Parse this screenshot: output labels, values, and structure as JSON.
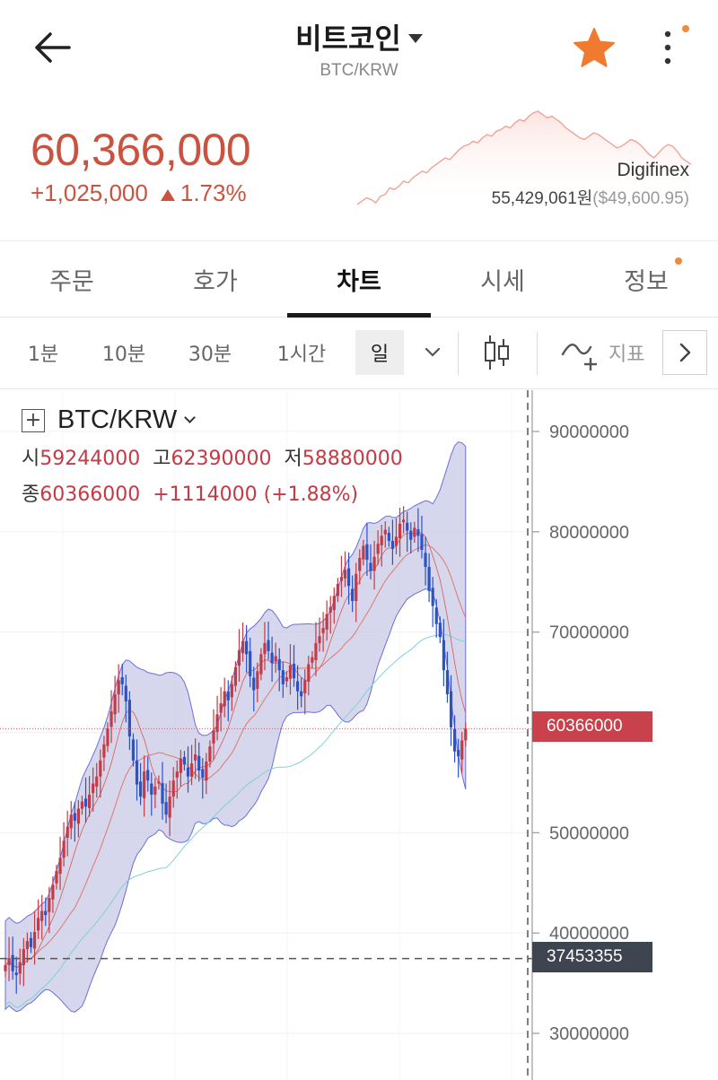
{
  "header": {
    "title": "비트코인",
    "subtitle": "BTC/KRW"
  },
  "summary": {
    "price": "60,366,000",
    "change_amount": "+1,025,000",
    "change_pct": "1.73%",
    "exchange": "Digifinex",
    "exchange_price": "55,429,061원",
    "exchange_usd": "($49,600.95)",
    "sparkline": [
      44,
      46,
      48,
      47,
      45,
      49,
      50,
      54,
      53,
      55,
      58,
      57,
      60,
      62,
      64,
      63,
      66,
      68,
      70,
      72,
      71,
      74,
      77,
      79,
      80,
      82,
      81,
      84,
      86,
      85,
      88,
      89,
      91,
      90,
      93,
      95,
      94,
      97,
      99,
      100,
      98,
      96,
      97,
      95,
      93,
      90,
      88,
      86,
      84,
      83,
      85,
      87,
      86,
      84,
      82,
      80,
      78,
      79,
      81,
      83,
      82,
      80,
      77,
      74,
      72,
      75,
      78,
      80,
      79,
      76,
      72,
      70,
      68
    ]
  },
  "tabs": [
    {
      "label": "주문"
    },
    {
      "label": "호가"
    },
    {
      "label": "차트",
      "active": true
    },
    {
      "label": "시세"
    },
    {
      "label": "정보"
    }
  ],
  "timeframes": [
    {
      "label": "1분"
    },
    {
      "label": "10분"
    },
    {
      "label": "30분"
    },
    {
      "label": "1시간"
    },
    {
      "label": "일",
      "active": true
    }
  ],
  "indicator_label": "지표",
  "colors": {
    "up": "#c23b45",
    "down": "#2c52c8",
    "band_fill": "#c8c8e6",
    "band_line": "#6d6fd6",
    "ma_short": "#e07a6a",
    "ma_long": "#7fd2d6",
    "accent": "#f08a3c"
  },
  "legend": {
    "symbol": "BTC/KRW",
    "open_label": "시",
    "open": "59244000",
    "high_label": "고",
    "high": "62390000",
    "low_label": "저",
    "low": "58880000",
    "close_label": "종",
    "close": "60366000",
    "change": "+1114000",
    "change_pct": "(+1.88%)"
  },
  "price_tags": {
    "current": "60366000",
    "crosshair": "37453355"
  },
  "chart_data": {
    "type": "candlestick",
    "y_ticks": [
      "90000000",
      "80000000",
      "70000000",
      "60000000",
      "50000000",
      "40000000",
      "30000000"
    ],
    "y_tick_values": [
      90000000,
      80000000,
      70000000,
      60000000,
      50000000,
      40000000,
      30000000
    ],
    "y_range": [
      27000000,
      95500000
    ],
    "current_price": 60366000,
    "crosshair_price": 37453355,
    "closes": [
      36.8,
      37.5,
      36.2,
      35.8,
      37.1,
      38.4,
      39.2,
      38.6,
      40.1,
      41.5,
      42.2,
      41.8,
      43.5,
      44.8,
      46.2,
      47.5,
      49.2,
      50.6,
      51.8,
      51.2,
      52.4,
      53.1,
      52.6,
      53.8,
      54.9,
      55.6,
      57.2,
      58.8,
      60.4,
      62.1,
      63.8,
      65.2,
      64.8,
      63.1,
      59.6,
      57.2,
      54.8,
      53.6,
      56.1,
      55.2,
      53.8,
      54.6,
      55.1,
      52.9,
      51.8,
      53.6,
      55.2,
      56.1,
      57.4,
      56.8,
      55.6,
      56.9,
      57.8,
      56.2,
      55.5,
      57.1,
      58.6,
      60.2,
      61.8,
      62.9,
      64.1,
      63.2,
      64.8,
      66.5,
      68.2,
      69.1,
      67.8,
      65.6,
      64.2,
      66.1,
      67.8,
      68.9,
      68.1,
      66.9,
      67.6,
      66.2,
      64.8,
      65.5,
      66.7,
      65.4,
      64.1,
      63.6,
      65.2,
      66.8,
      67.5,
      68.9,
      69.6,
      70.4,
      71.8,
      72.5,
      73.6,
      74.8,
      75.5,
      76.2,
      74.6,
      73.1,
      75.8,
      77.4,
      78.6,
      77.2,
      76.1,
      77.5,
      78.8,
      79.6,
      80.2,
      79.1,
      78.3,
      79.5,
      80.8,
      81.2,
      80.1,
      79.2,
      80.4,
      79.6,
      78.2,
      76.5,
      74.1,
      72.6,
      70.8,
      69.5,
      66.2,
      63.8,
      60.5,
      58.1,
      57.6,
      59.2,
      60.4
    ]
  }
}
